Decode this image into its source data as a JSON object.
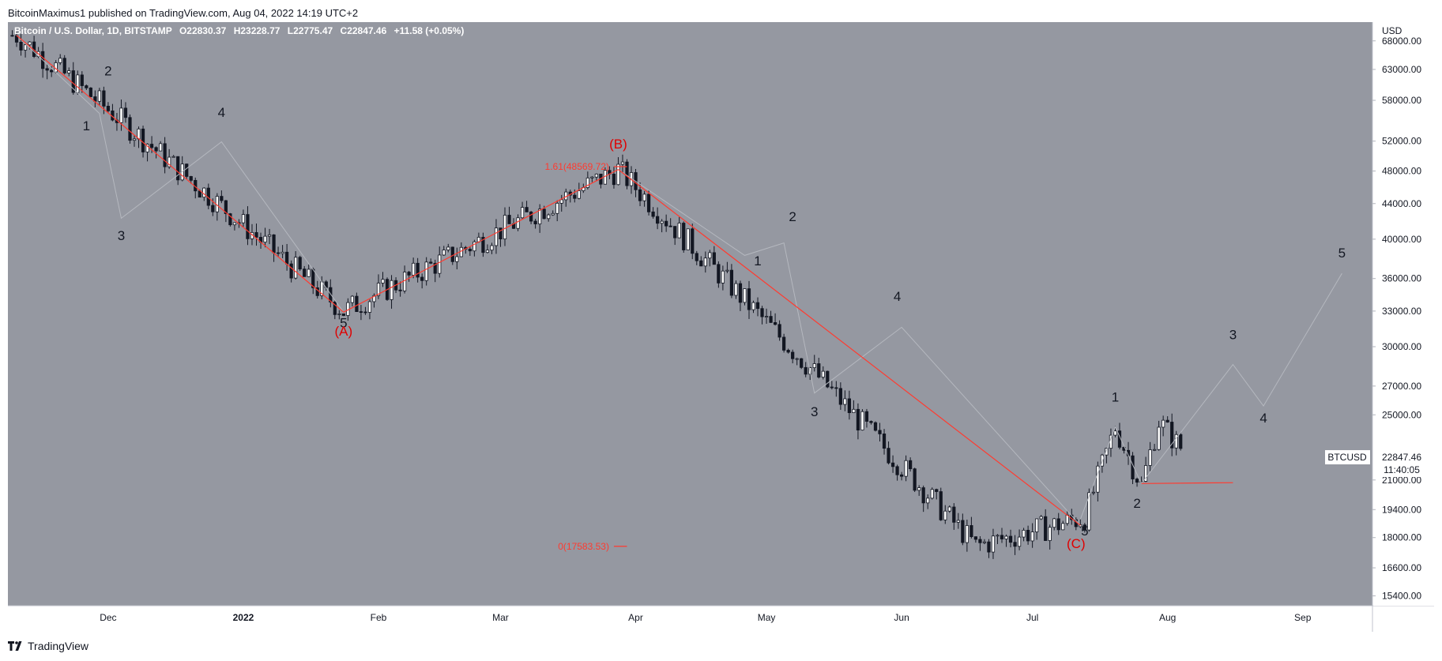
{
  "header": {
    "publisher_line": "BitcoinMaximus1 published on TradingView.com, Aug 04, 2022 14:19 UTC+2"
  },
  "footer": {
    "brand": "TradingView",
    "logo": "tradingview-logo-icon"
  },
  "colors": {
    "background": "#9598a1",
    "axis": "#ffffff",
    "wave_line": "#ff3b30",
    "wave_label": "#131722",
    "corrective_label": "#e00000",
    "candle": "#131722",
    "candle_up_fill": "#ffffff"
  },
  "chart_data": {
    "type": "candlestick",
    "symbol_line": {
      "name": "Bitcoin / U.S. Dollar, 1D, BITSTAMP",
      "o_key": "O",
      "o": "22830.37",
      "h_key": "H",
      "h": "23228.77",
      "l_key": "L",
      "l": "22775.47",
      "c_key": "C",
      "c": "22847.46",
      "change": "+11.58 (+0.05%)"
    },
    "currency": "USD",
    "y_scale": "log",
    "y_ticks": [
      {
        "value": 68000,
        "label": "68000.00"
      },
      {
        "value": 63000,
        "label": "63000.00"
      },
      {
        "value": 58000,
        "label": "58000.00"
      },
      {
        "value": 52000,
        "label": "52000.00"
      },
      {
        "value": 48000,
        "label": "48000.00"
      },
      {
        "value": 44000,
        "label": "44000.00"
      },
      {
        "value": 40000,
        "label": "40000.00"
      },
      {
        "value": 36000,
        "label": "36000.00"
      },
      {
        "value": 33000,
        "label": "33000.00"
      },
      {
        "value": 30000,
        "label": "30000.00"
      },
      {
        "value": 27000,
        "label": "27000.00"
      },
      {
        "value": 25000,
        "label": "25000.00"
      },
      {
        "value": 21000,
        "label": "21000.00"
      },
      {
        "value": 19400,
        "label": "19400.00"
      },
      {
        "value": 18000,
        "label": "18000.00"
      },
      {
        "value": 16600,
        "label": "16600.00"
      },
      {
        "value": 15400,
        "label": "15400.00"
      }
    ],
    "x_ticks": [
      {
        "date": "2021-12-01",
        "label": "Dec",
        "bold": false
      },
      {
        "date": "2022-01-01",
        "label": "2022",
        "bold": true
      },
      {
        "date": "2022-02-01",
        "label": "Feb",
        "bold": false
      },
      {
        "date": "2022-03-01",
        "label": "Mar",
        "bold": false
      },
      {
        "date": "2022-04-01",
        "label": "Apr",
        "bold": false
      },
      {
        "date": "2022-05-01",
        "label": "May",
        "bold": false
      },
      {
        "date": "2022-06-01",
        "label": "Jun",
        "bold": false
      },
      {
        "date": "2022-07-01",
        "label": "Jul",
        "bold": false
      },
      {
        "date": "2022-08-01",
        "label": "Aug",
        "bold": false
      },
      {
        "date": "2022-09-01",
        "label": "Sep",
        "bold": false
      }
    ],
    "x_range": [
      "2021-11-08",
      "2022-09-17"
    ],
    "y_range": [
      15000,
      71500
    ],
    "price_label": {
      "symbol": "BTCUSD",
      "value": "22847.46",
      "countdown": "11:40:05"
    },
    "anchors": [
      {
        "date": "2021-11-10",
        "price": 69000
      },
      {
        "date": "2021-12-04",
        "price": 55000
      },
      {
        "date": "2022-01-24",
        "price": 33000
      },
      {
        "date": "2022-03-28",
        "price": 48200
      },
      {
        "date": "2022-05-12",
        "price": 28000
      },
      {
        "date": "2022-06-18",
        "price": 17600
      },
      {
        "date": "2022-07-13",
        "price": 19000
      },
      {
        "date": "2022-07-20",
        "price": 24200
      },
      {
        "date": "2022-07-26",
        "price": 20700
      },
      {
        "date": "2022-07-30",
        "price": 24600
      },
      {
        "date": "2022-08-04",
        "price": 22850
      }
    ],
    "red_lines": [
      [
        {
          "date": "2021-11-10",
          "price": 69000
        },
        {
          "date": "2022-01-24",
          "price": 32900
        }
      ],
      [
        {
          "date": "2022-01-24",
          "price": 32900
        },
        {
          "date": "2022-03-28",
          "price": 48200
        }
      ],
      [
        {
          "date": "2022-03-28",
          "price": 48200
        },
        {
          "date": "2022-07-12",
          "price": 18600
        }
      ],
      [
        {
          "date": "2022-07-26",
          "price": 20800
        },
        {
          "date": "2022-08-16",
          "price": 20850
        }
      ]
    ],
    "grey_lines": [
      [
        {
          "date": "2021-11-10",
          "price": 69000
        },
        {
          "date": "2021-11-29",
          "price": 56000
        },
        {
          "date": "2021-12-04",
          "price": 42300
        },
        {
          "date": "2021-12-27",
          "price": 51900
        },
        {
          "date": "2022-01-24",
          "price": 32900
        }
      ],
      [
        {
          "date": "2022-03-28",
          "price": 48200
        },
        {
          "date": "2022-04-26",
          "price": 38300
        },
        {
          "date": "2022-05-05",
          "price": 39600
        },
        {
          "date": "2022-05-12",
          "price": 26500
        },
        {
          "date": "2022-06-01",
          "price": 31600
        },
        {
          "date": "2022-07-12",
          "price": 18600
        }
      ],
      [
        {
          "date": "2022-07-12",
          "price": 18900
        },
        {
          "date": "2022-07-20",
          "price": 24200
        },
        {
          "date": "2022-07-26",
          "price": 20800
        },
        {
          "date": "2022-08-16",
          "price": 28600
        },
        {
          "date": "2022-08-23",
          "price": 25600
        },
        {
          "date": "2022-09-10",
          "price": 36500
        }
      ]
    ],
    "wave_labels": [
      {
        "text": "1",
        "date": "2021-11-26",
        "price": 53500,
        "color": "black"
      },
      {
        "text": "2",
        "date": "2021-12-01",
        "price": 62000,
        "color": "black"
      },
      {
        "text": "3",
        "date": "2021-12-04",
        "price": 39900,
        "color": "black"
      },
      {
        "text": "4",
        "date": "2021-12-27",
        "price": 55500,
        "color": "black"
      },
      {
        "text": "5",
        "date": "2022-01-24",
        "price": 31600,
        "color": "black"
      },
      {
        "text": "(A)",
        "date": "2022-01-24",
        "price": 30900,
        "color": "red"
      },
      {
        "text": "(B)",
        "date": "2022-03-28",
        "price": 51000,
        "color": "red"
      },
      {
        "text": "1",
        "date": "2022-04-29",
        "price": 37300,
        "color": "black"
      },
      {
        "text": "2",
        "date": "2022-05-07",
        "price": 42000,
        "color": "black"
      },
      {
        "text": "3",
        "date": "2022-05-12",
        "price": 24900,
        "color": "black"
      },
      {
        "text": "4",
        "date": "2022-05-31",
        "price": 33900,
        "color": "black"
      },
      {
        "text": "5",
        "date": "2022-07-13",
        "price": 18100,
        "color": "black"
      },
      {
        "text": "(C)",
        "date": "2022-07-11",
        "price": 17500,
        "color": "red"
      },
      {
        "text": "1",
        "date": "2022-07-20",
        "price": 25900,
        "color": "black"
      },
      {
        "text": "2",
        "date": "2022-07-25",
        "price": 19500,
        "color": "black"
      },
      {
        "text": "3",
        "date": "2022-08-16",
        "price": 30600,
        "color": "black"
      },
      {
        "text": "4",
        "date": "2022-08-23",
        "price": 24500,
        "color": "black"
      },
      {
        "text": "5",
        "date": "2022-09-10",
        "price": 38100,
        "color": "black"
      }
    ],
    "fib_levels": [
      {
        "label": "1.61(48569.72)",
        "price": 48570,
        "date_start": "2022-03-27",
        "date_end": "2022-03-30"
      },
      {
        "label": "0(17583.53)",
        "price": 17584,
        "date_start": "2022-03-27",
        "date_end": "2022-03-30"
      }
    ]
  }
}
